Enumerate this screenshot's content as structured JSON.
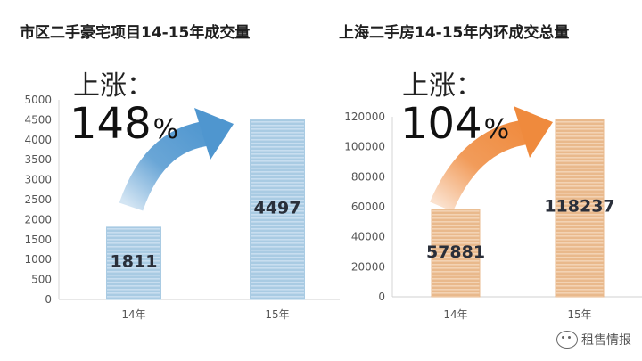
{
  "chart_data": [
    {
      "type": "bar",
      "title": "市区二手豪宅项目14-15年成交量",
      "categories": [
        "14年",
        "15年"
      ],
      "values": [
        1811,
        4497
      ],
      "ylim": [
        0,
        5000
      ],
      "yticks": [
        0,
        500,
        1000,
        1500,
        2000,
        2500,
        3000,
        3500,
        4000,
        4500,
        5000
      ],
      "annotation_label": "上涨：",
      "annotation_value": "148",
      "annotation_unit": "%",
      "bar_color": "#a9cbe3",
      "bar_stripe": "#c8def0",
      "arrow_color": "#4f96cf",
      "grid": false
    },
    {
      "type": "bar",
      "title": "上海二手房14-15年内环成交总量",
      "categories": [
        "14年",
        "15年"
      ],
      "values": [
        57881,
        118237
      ],
      "ylim": [
        0,
        120000
      ],
      "yticks": [
        0,
        20000,
        40000,
        60000,
        80000,
        100000,
        120000
      ],
      "annotation_label": "上涨：",
      "annotation_value": "104",
      "annotation_unit": "%",
      "bar_color": "#e9b98c",
      "bar_stripe": "#f3d3b4",
      "arrow_color": "#ef8a3d",
      "grid": false
    }
  ],
  "watermark": "租售情报"
}
